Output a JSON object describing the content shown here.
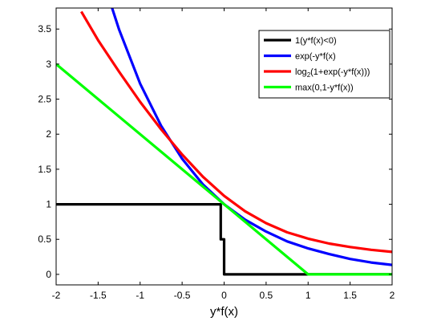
{
  "chart_data": {
    "type": "line",
    "xlabel": "y*f(x)",
    "ylabel": "",
    "xlim": [
      -2,
      2
    ],
    "ylim": [
      -0.15,
      3.8
    ],
    "xticks": [
      -2,
      -1.5,
      -1,
      -0.5,
      0,
      0.5,
      1,
      1.5,
      2
    ],
    "xtick_labels": [
      "-2",
      "-1.5",
      "-1",
      "-0.5",
      "0",
      "0.5",
      "1",
      "1.5",
      "2"
    ],
    "yticks": [
      0,
      0.5,
      1,
      1.5,
      2,
      2.5,
      3,
      3.5
    ],
    "ytick_labels": [
      "0",
      "0.5",
      "1",
      "1.5",
      "2",
      "2.5",
      "3",
      "3.5"
    ],
    "grid": false,
    "legend_position": "top-right",
    "series": [
      {
        "name": "1(y*f(x)<0)",
        "legend_main": "1(y*f(x)<0)",
        "legend_sub": "",
        "legend_tail": "",
        "color": "#000000",
        "x": [
          -2,
          -0.04,
          -0.04,
          0,
          0,
          2
        ],
        "y": [
          1,
          1,
          0.5,
          0.5,
          0,
          0
        ]
      },
      {
        "name": "exp(-y*f(x)",
        "legend_main": "exp(-y*f(x)",
        "legend_sub": "",
        "legend_tail": "",
        "color": "#0000ff",
        "x": [
          -1.35,
          -1.25,
          -1.0,
          -0.75,
          -0.5,
          -0.25,
          0,
          0.25,
          0.5,
          0.75,
          1.0,
          1.25,
          1.5,
          1.75,
          2.0
        ],
        "y": [
          3.86,
          3.49,
          2.72,
          2.12,
          1.65,
          1.28,
          1.0,
          0.78,
          0.61,
          0.47,
          0.37,
          0.29,
          0.22,
          0.17,
          0.135
        ]
      },
      {
        "name": "log2(1+exp(-y*f(x)))",
        "legend_main": "log",
        "legend_sub": "2",
        "legend_tail": "(1+exp(-y*f(x)))",
        "color": "#ff0000",
        "x": [
          -1.7,
          -1.5,
          -1.25,
          -1.0,
          -0.75,
          -0.5,
          -0.25,
          0,
          0.25,
          0.5,
          0.75,
          1.0,
          1.25,
          1.5,
          1.75,
          2.0
        ],
        "y": [
          3.75,
          3.34,
          2.89,
          2.46,
          2.07,
          1.71,
          1.39,
          1.12,
          0.9,
          0.73,
          0.6,
          0.51,
          0.44,
          0.39,
          0.35,
          0.32
        ]
      },
      {
        "name": "max(0,1-y*f(x))",
        "legend_main": "max(0,1-y*f(x))",
        "legend_sub": "",
        "legend_tail": "",
        "color": "#00ff00",
        "x": [
          -2,
          1,
          2
        ],
        "y": [
          3,
          0,
          0
        ]
      }
    ]
  }
}
